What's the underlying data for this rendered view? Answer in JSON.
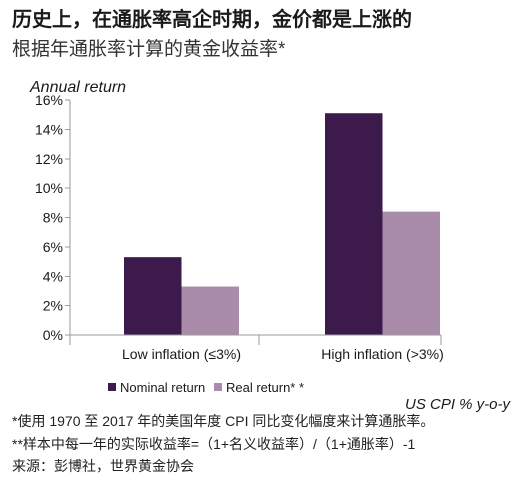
{
  "chart_data": {
    "type": "bar",
    "title": "历史上，在通胀率高企时期，金价都是上涨的",
    "subtitle": "根据年通胀率计算的黄金收益率*",
    "ylabel": "Annual return",
    "xlabel": "US CPI % y-o-y",
    "categories": [
      "Low inflation (≤3%)",
      "High inflation (>3%)"
    ],
    "series": [
      {
        "name": "Nominal return",
        "values": [
          5.3,
          15.1
        ],
        "color": "#3c1a4c"
      },
      {
        "name": "Real return* *",
        "values": [
          3.3,
          8.4
        ],
        "color": "#a88caa"
      }
    ],
    "ylim": [
      0,
      16
    ],
    "yticks": [
      0,
      2,
      4,
      6,
      8,
      10,
      12,
      14,
      16
    ],
    "ytick_labels": [
      "0%",
      "2%",
      "4%",
      "6%",
      "8%",
      "10%",
      "12%",
      "14%",
      "16%"
    ],
    "grid": false,
    "legend": "bottom"
  },
  "footnotes": [
    "*使用 1970 至 2017 年的美国年度 CPI 同比变化幅度来计算通胀率。",
    "**样本中每一年的实际收益率=（1+名义收益率）/（1+通胀率）-1",
    "来源：彭博社，世界黄金协会"
  ],
  "colors": {
    "axis": "#9a9a9a",
    "text": "#1a1a1a"
  }
}
